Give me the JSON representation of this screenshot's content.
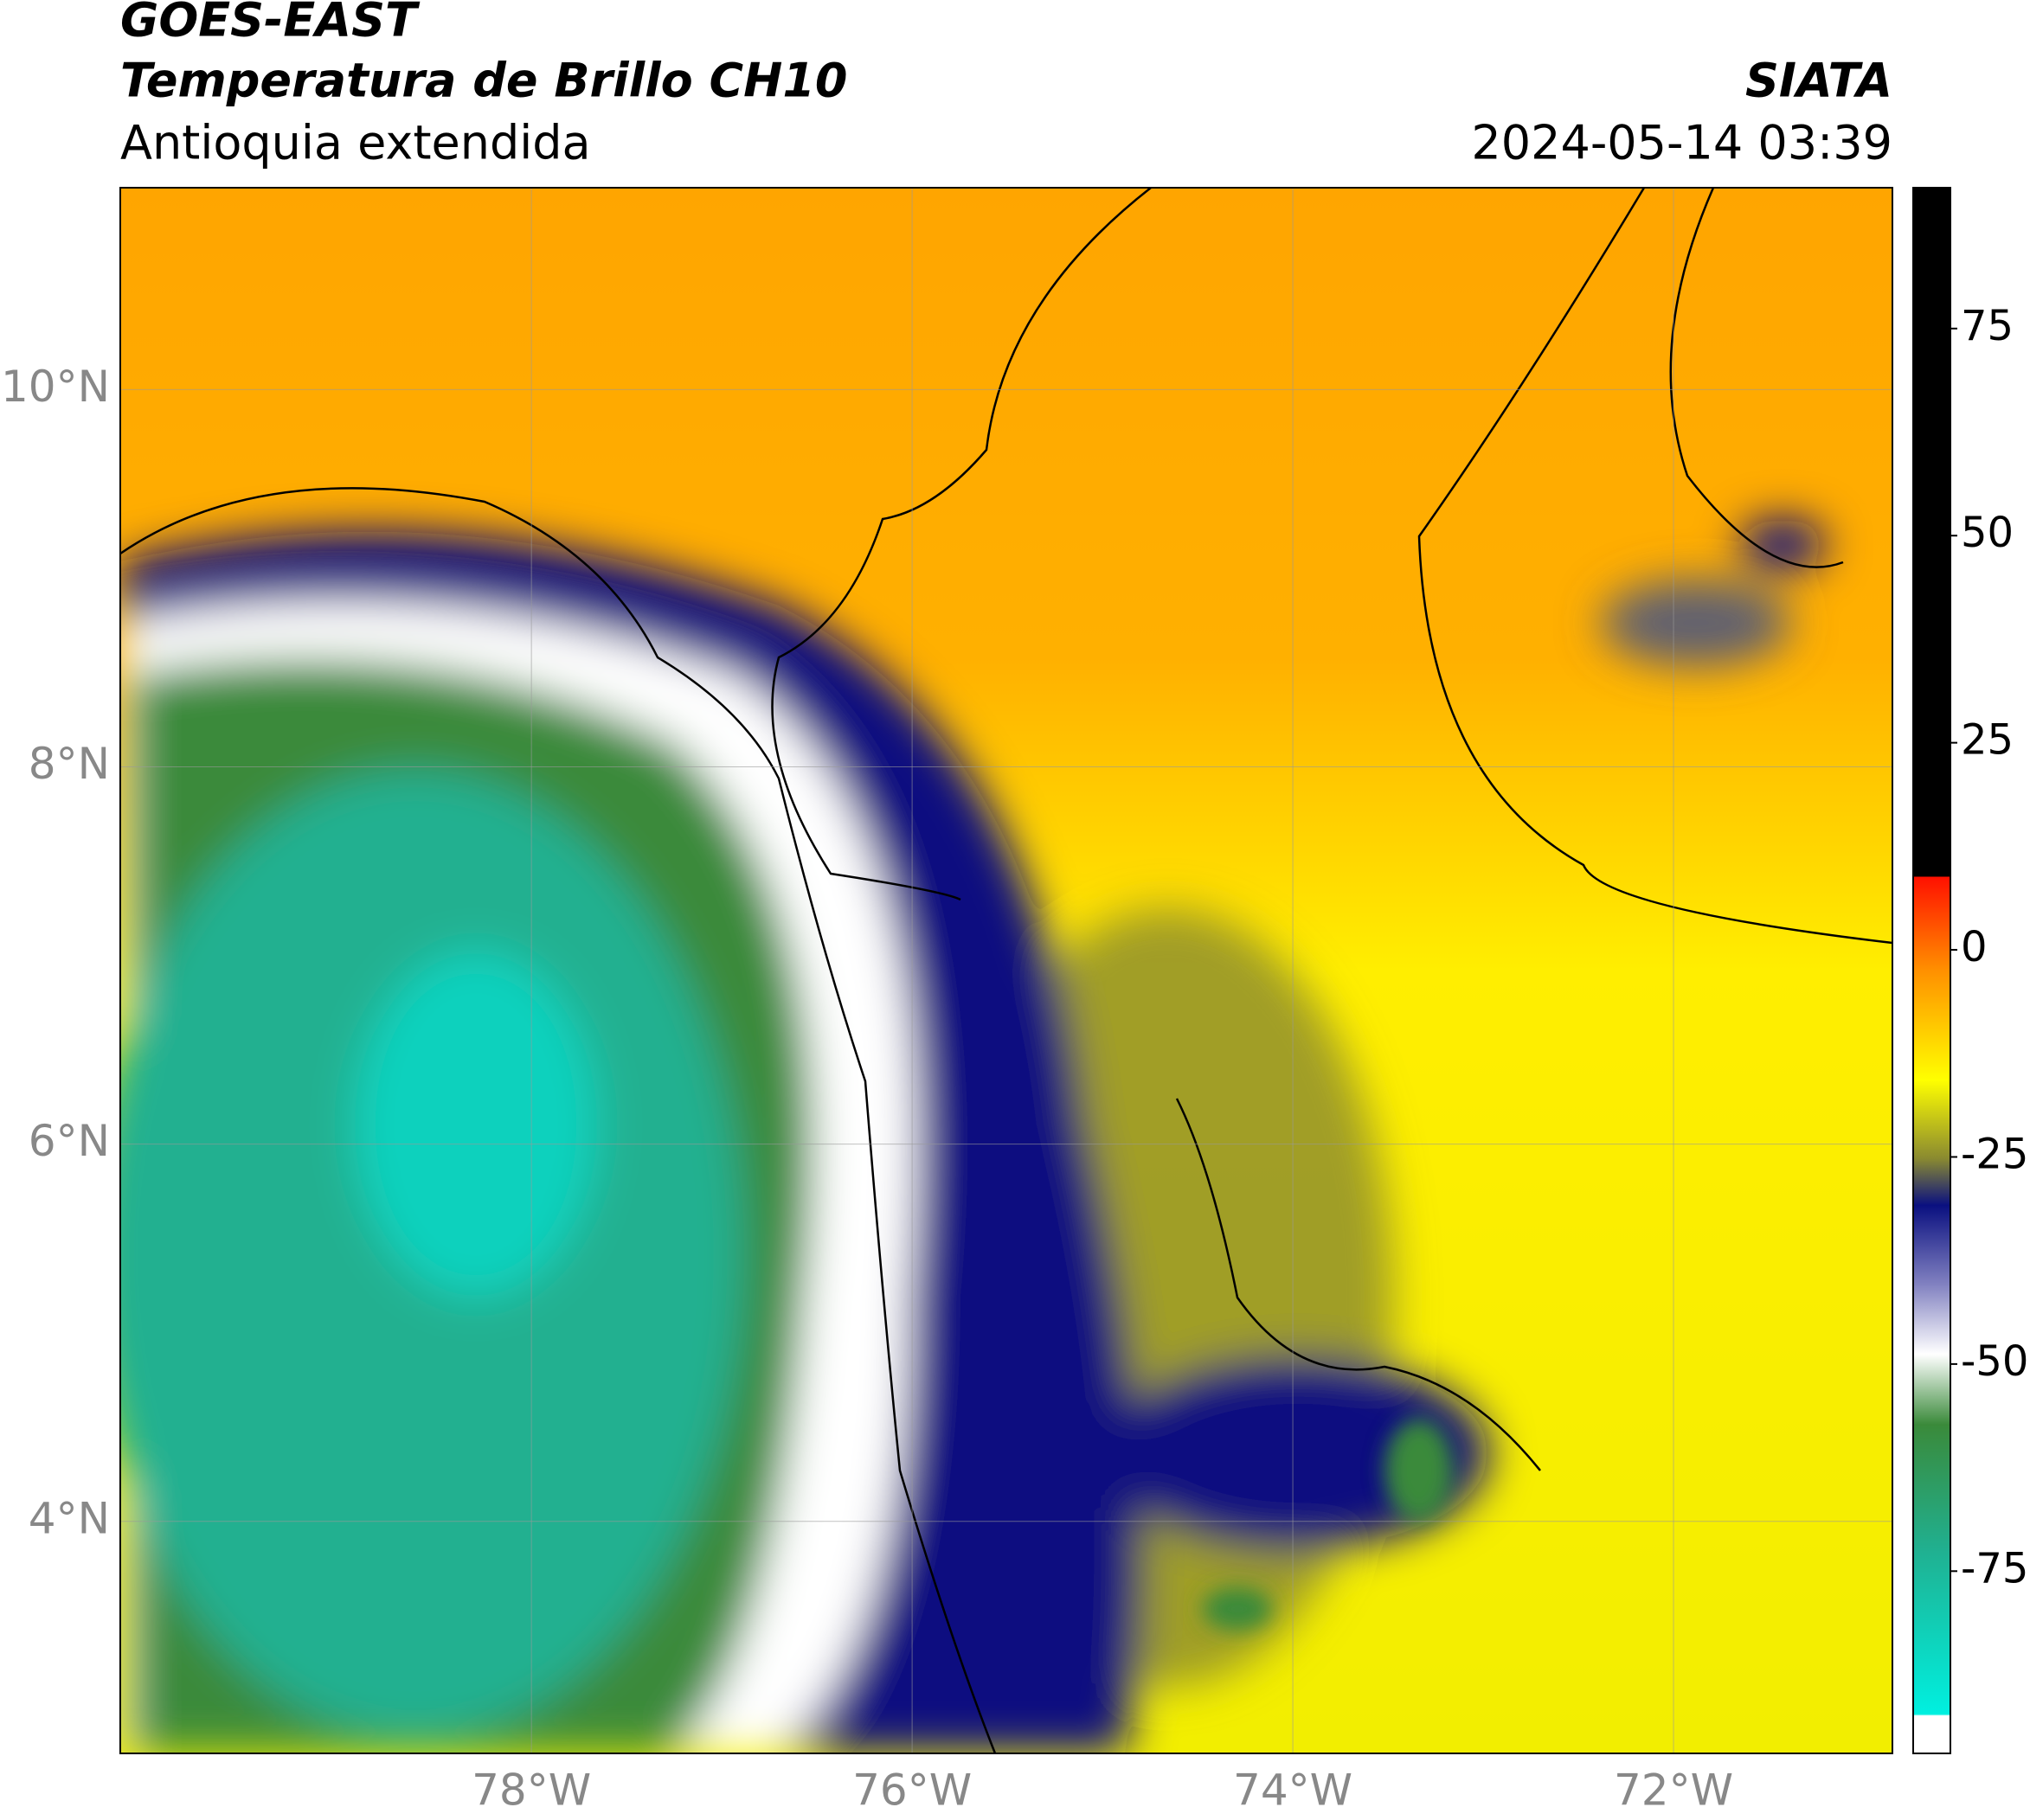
{
  "header": {
    "title": "GOES-EAST",
    "subtitle": "Temperatura de Brillo CH10",
    "region": "Antioquia extendida",
    "source": "SIATA",
    "datetime": "2024-05-14 03:39"
  },
  "map": {
    "xlim": [
      -80.16,
      -70.85
    ],
    "ylim": [
      2.77,
      11.07
    ],
    "xticks": [
      {
        "value": -78,
        "label": "78°W"
      },
      {
        "value": -76,
        "label": "76°W"
      },
      {
        "value": -74,
        "label": "74°W"
      },
      {
        "value": -72,
        "label": "72°W"
      }
    ],
    "yticks": [
      {
        "value": 4,
        "label": "4°N"
      },
      {
        "value": 6,
        "label": "6°N"
      },
      {
        "value": 8,
        "label": "8°N"
      },
      {
        "value": 10,
        "label": "10°N"
      }
    ],
    "grid": true
  },
  "colorbar": {
    "lim": [
      -97,
      92
    ],
    "ticks": [
      -75,
      -50,
      -25,
      0,
      25,
      50,
      75
    ]
  }
}
